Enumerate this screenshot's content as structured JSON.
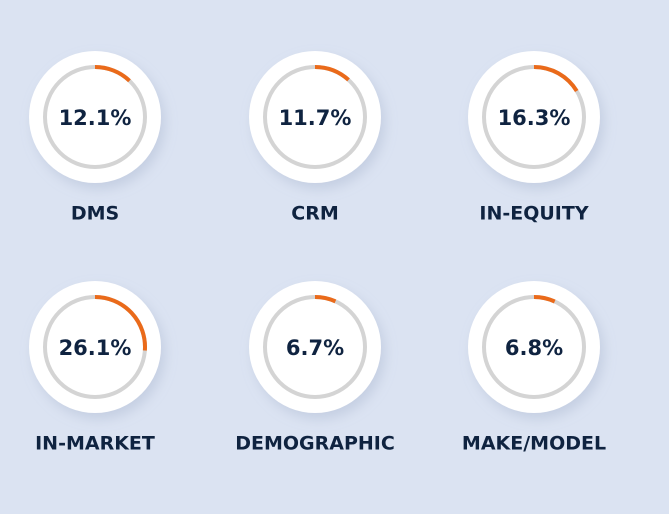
{
  "chart_data": {
    "type": "gauge",
    "categories": [
      "DMS",
      "CRM",
      "IN-EQUITY",
      "IN-MARKET",
      "DEMOGRAPHIC",
      "MAKE/MODEL"
    ],
    "values": [
      12.1,
      11.7,
      16.3,
      26.1,
      6.7,
      6.8
    ],
    "value_labels": [
      "12.1%",
      "11.7%",
      "16.3%",
      "26.1%",
      "6.7%",
      "6.8%"
    ],
    "ylim": [
      0,
      100
    ],
    "color": "#ea6a1a",
    "track_color": "#d4d4d4"
  }
}
